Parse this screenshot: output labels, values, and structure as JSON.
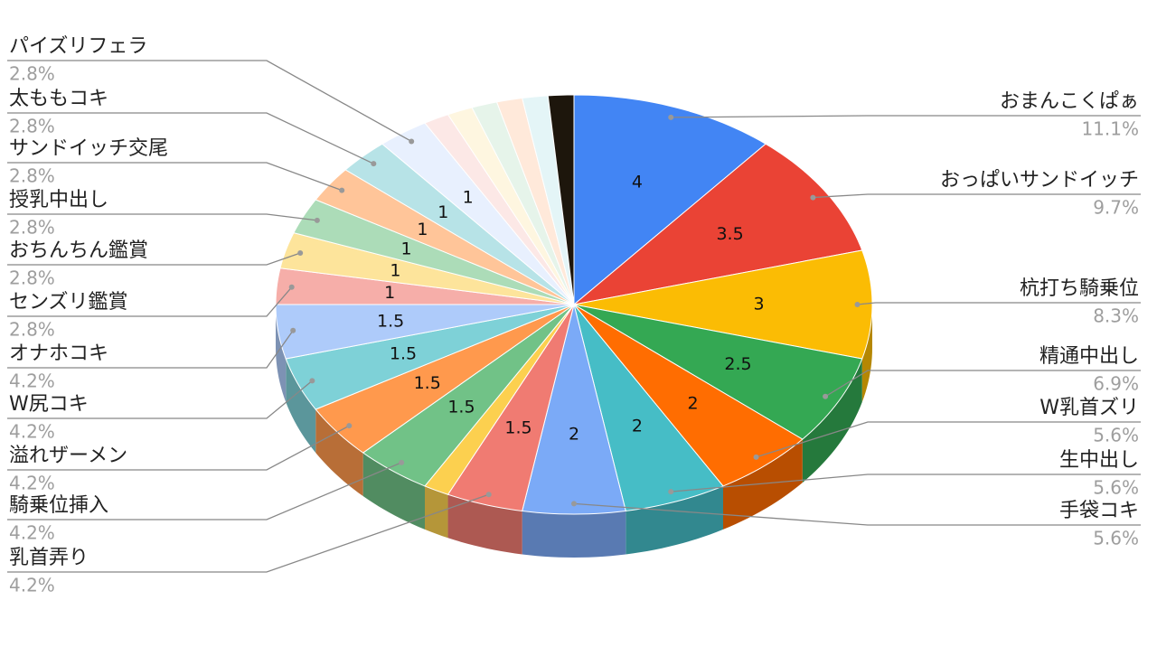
{
  "chart_data": {
    "type": "pie3d",
    "categories": [
      "おまんこくぱぁ",
      "おっぱいサンドイッチ",
      "杭打ち騎乗位",
      "精通中出し",
      "W乳首ズリ",
      "生中出し",
      "手袋コキ",
      "乳首弄り",
      null,
      "騎乗位挿入",
      "溢れザーメン",
      "W尻コキ",
      "オナホコキ",
      "センズリ鑑賞",
      "おちんちん鑑賞",
      "授乳中出し",
      "サンドイッチ交尾",
      "太ももコキ",
      "パイズリフェラ",
      null,
      null,
      null,
      null,
      null,
      null
    ],
    "values": [
      4,
      3.5,
      3,
      2.5,
      2,
      2,
      2,
      1.5,
      0.5,
      1.5,
      1.5,
      1.5,
      1.5,
      1,
      1,
      1,
      1,
      1,
      1,
      0.5,
      0.5,
      0.5,
      0.5,
      0.5,
      0.5
    ],
    "percent_labels": [
      "11.1%",
      "9.7%",
      "8.3%",
      "6.9%",
      "5.6%",
      "5.6%",
      "5.6%",
      "4.2%",
      null,
      "4.2%",
      "4.2%",
      "4.2%",
      "4.2%",
      "2.8%",
      "2.8%",
      "2.8%",
      "2.8%",
      "2.8%",
      "2.8%",
      null,
      null,
      null,
      null,
      null,
      null
    ],
    "colors": [
      "#4285f4",
      "#ea4335",
      "#fbbc04",
      "#34a853",
      "#ff6d01",
      "#46bdc6",
      "#7baaf7",
      "#f07b72",
      "#fcd04f",
      "#71c287",
      "#ff994d",
      "#7ed1d7",
      "#aecbfa",
      "#f6aea9",
      "#fde49b",
      "#acdcb8",
      "#ffc599",
      "#b7e3e7",
      "#e8f0fe",
      "#fce8e6",
      "#fef6e0",
      "#e6f4ea",
      "#ffe9da",
      "#e4f5f7",
      "#1d160c"
    ]
  }
}
